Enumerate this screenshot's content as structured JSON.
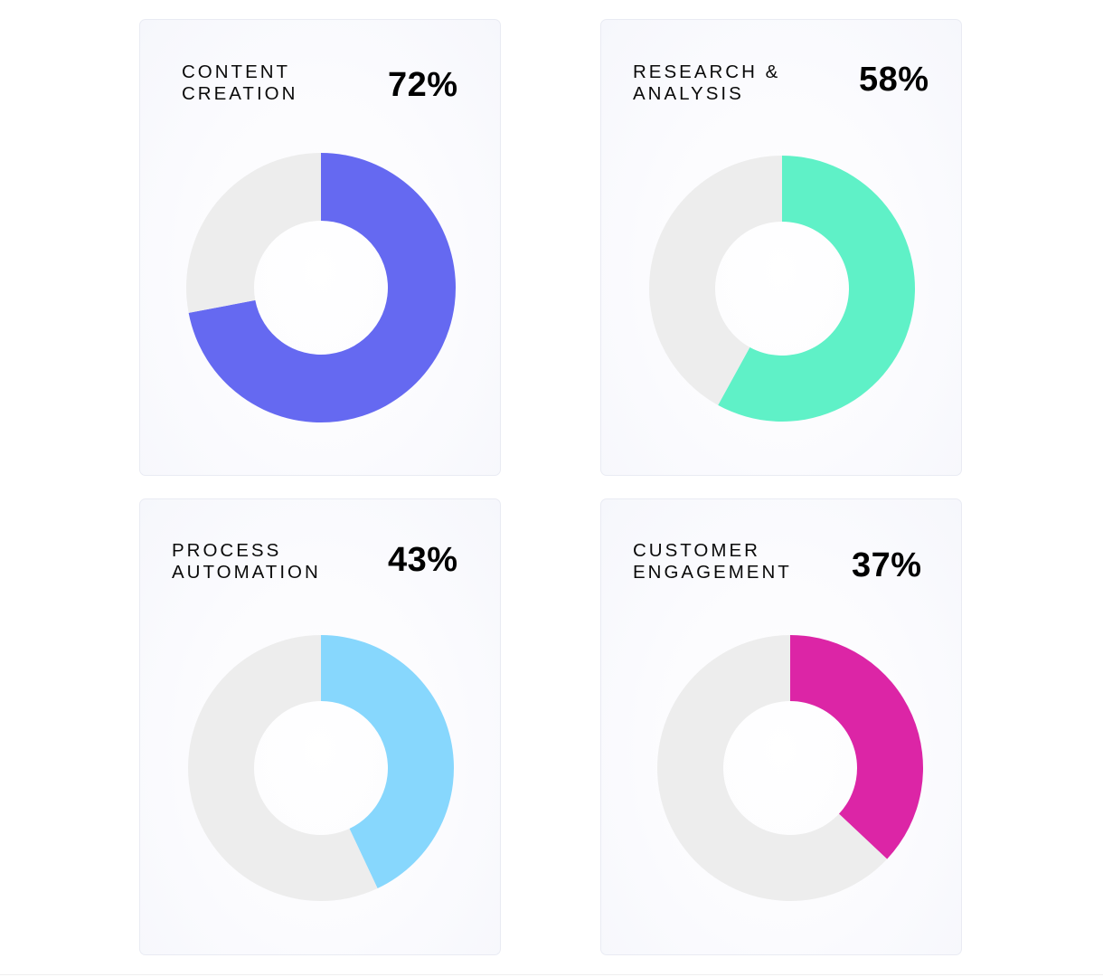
{
  "track_color": "#ededed",
  "chart_data": [
    {
      "type": "pie",
      "title": "CONTENT\nCREATION",
      "value_label": "72%",
      "values": [
        72,
        28
      ],
      "categories": [
        "",
        ""
      ],
      "color": "#6569f1"
    },
    {
      "type": "pie",
      "title": "RESEARCH &\nANALYSIS",
      "value_label": "58%",
      "values": [
        58,
        42
      ],
      "categories": [
        "",
        ""
      ],
      "color": "#5ff1c7"
    },
    {
      "type": "pie",
      "title": "PROCESS\nAUTOMATION",
      "value_label": "43%",
      "values": [
        43,
        57
      ],
      "categories": [
        "",
        ""
      ],
      "color": "#87d7fd"
    },
    {
      "type": "pie",
      "title": "CUSTOMER\nENGAGEMENT",
      "value_label": "37%",
      "values": [
        37,
        63
      ],
      "categories": [
        "",
        ""
      ],
      "color": "#dc25a6"
    }
  ]
}
